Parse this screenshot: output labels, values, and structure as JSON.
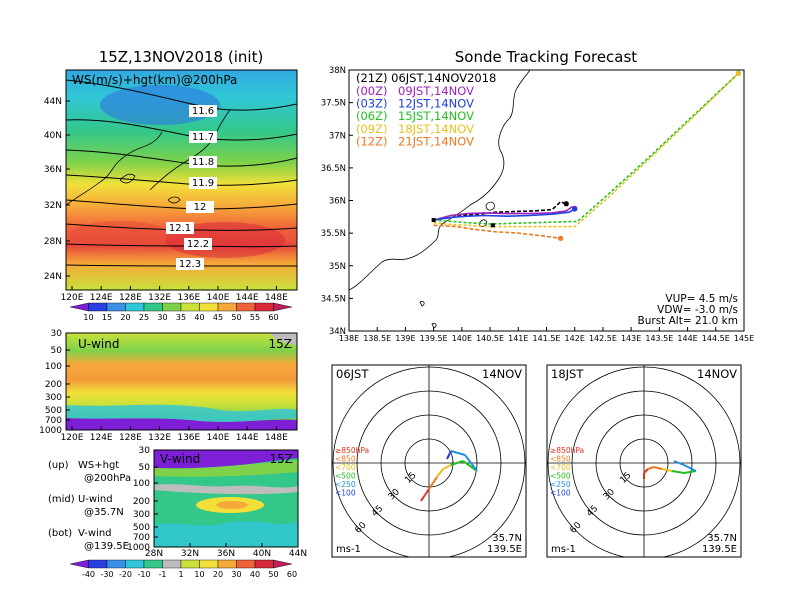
{
  "left_title": "15Z,13NOV2018 (init)",
  "ws_panel": {
    "label": "WS(m/s)+hgt(km)@200hPa",
    "lat_ticks": [
      "44N",
      "40N",
      "36N",
      "32N",
      "28N",
      "24N"
    ],
    "lon_ticks": [
      "120E",
      "124E",
      "128E",
      "132E",
      "136E",
      "140E",
      "144E",
      "148E"
    ],
    "contour_labels": [
      "11.6",
      "11.7",
      "11.8",
      "11.9",
      "12",
      "12.1",
      "12.2",
      "12.3"
    ],
    "colorbar_labels": [
      "10",
      "15",
      "20",
      "25",
      "30",
      "35",
      "40",
      "45",
      "50",
      "55",
      "60"
    ],
    "colorbar_colors": [
      "#7d1fd6",
      "#2b3fe0",
      "#3a8fe8",
      "#31c6d8",
      "#34c78a",
      "#7ed24a",
      "#c9e13a",
      "#f2e03a",
      "#f6a93a",
      "#f0623a",
      "#d8283a",
      "#c01e5c"
    ]
  },
  "u_panel": {
    "label": "U-wind",
    "time": "15Z",
    "p_ticks": [
      "30",
      "50",
      "100",
      "200",
      "300",
      "500",
      "700",
      "1000"
    ],
    "lon_ticks": [
      "120E",
      "124E",
      "128E",
      "132E",
      "136E",
      "140E",
      "144E",
      "148E"
    ]
  },
  "v_panel": {
    "label": "V-wind",
    "time": "15Z",
    "p_ticks": [
      "30",
      "50",
      "100",
      "200",
      "300",
      "500",
      "700",
      "1000"
    ],
    "lat_ticks": [
      "28N",
      "32N",
      "36N",
      "40N",
      "44N"
    ]
  },
  "legend_notes": [
    {
      "key": "(up)",
      "line1": "WS+hgt",
      "line2": "@200hPa"
    },
    {
      "key": "(mid)",
      "line1": "U-wind",
      "line2": "@35.7N"
    },
    {
      "key": "(bot)",
      "line1": "V-wind",
      "line2": "@139.5E"
    }
  ],
  "wind_colorbar": {
    "labels": [
      "-40",
      "-30",
      "-20",
      "-10",
      "-1",
      "1",
      "10",
      "20",
      "30",
      "40",
      "50",
      "60"
    ],
    "colors": [
      "#7d1fd6",
      "#2b3fe0",
      "#3a8fe8",
      "#31c6d8",
      "#34c78a",
      "#bdbdbd",
      "#c9e13a",
      "#f2e03a",
      "#f6a93a",
      "#f0623a",
      "#d8283a",
      "#c01e5c"
    ]
  },
  "tracking": {
    "title": "Sonde Tracking Forecast",
    "lat_ticks": [
      "38N",
      "37.5N",
      "37N",
      "36.5N",
      "36N",
      "35.5N",
      "35N",
      "34.5N",
      "34N"
    ],
    "lon_ticks": [
      "138E",
      "138.5E",
      "139E",
      "139.5E",
      "140E",
      "140.5E",
      "141E",
      "141.5E",
      "142E",
      "142.5E",
      "143E",
      "143.5E",
      "144E",
      "144.5E",
      "145E"
    ],
    "header_line": "(21Z) 06JST,14NOV2018",
    "launches": [
      {
        "utc": "(00Z)",
        "jst": "09JST,14NOV",
        "color": "#a020c0"
      },
      {
        "utc": "(03Z)",
        "jst": "12JST,14NOV",
        "color": "#2040e0"
      },
      {
        "utc": "(06Z)",
        "jst": "15JST,14NOV",
        "color": "#22c020"
      },
      {
        "utc": "(09Z)",
        "jst": "18JST,14NOV",
        "color": "#e8c020"
      },
      {
        "utc": "(12Z)",
        "jst": "21JST,14NOV",
        "color": "#f07820"
      }
    ],
    "params": [
      "VUP= 4.5 m/s",
      "VDW= -3.0 m/s",
      "Burst Alt= 21.0 km"
    ]
  },
  "hodo_left": {
    "time": "06JST",
    "date": "14NOV",
    "ring_labels": [
      "15",
      "30",
      "45",
      "60"
    ],
    "unit": "ms-1",
    "lat": "35.7N",
    "lon": "139.5E",
    "levels": [
      {
        "label": "≥850hPa",
        "color": "#e83020"
      },
      {
        "label": "<850",
        "color": "#f07820"
      },
      {
        "label": "<700",
        "color": "#e8c020"
      },
      {
        "label": "<500",
        "color": "#22c020"
      },
      {
        "label": "<250",
        "color": "#2090e0"
      },
      {
        "label": "<100",
        "color": "#2040e0"
      }
    ]
  },
  "hodo_right": {
    "time": "18JST",
    "date": "14NOV",
    "ring_labels": [
      "15",
      "30",
      "45",
      "60"
    ],
    "unit": "ms-1",
    "lat": "35.7N",
    "lon": "139.5E",
    "levels": [
      {
        "label": "≥850hPa",
        "color": "#e83020"
      },
      {
        "label": "<850",
        "color": "#f07820"
      },
      {
        "label": "<700",
        "color": "#e8c020"
      },
      {
        "label": "<500",
        "color": "#22c020"
      },
      {
        "label": "<250",
        "color": "#2090e0"
      },
      {
        "label": "<100",
        "color": "#2040e0"
      }
    ]
  },
  "chart_data": {
    "type": "line",
    "title": "Sonde Tracking Forecast",
    "xlabel": "",
    "ylabel": "",
    "xlim": [
      138,
      145
    ],
    "ylim": [
      34,
      38
    ],
    "series": [
      {
        "name": "(21Z) 06JST,14NOV2018",
        "color": "#000000",
        "x": [
          139.5,
          139.8,
          140.1,
          140.4,
          140.6,
          140.9,
          141.3,
          141.6,
          141.75,
          141.85
        ],
        "y": [
          35.7,
          35.74,
          35.78,
          35.8,
          35.82,
          35.83,
          35.84,
          35.86,
          35.98,
          35.95
        ]
      },
      {
        "name": "(00Z) 09JST,14NOV",
        "color": "#a020c0",
        "x": [
          139.5,
          139.8,
          140.1,
          140.4,
          140.8,
          141.2,
          141.6,
          141.85,
          141.95,
          142.0
        ],
        "y": [
          35.7,
          35.77,
          35.8,
          35.81,
          35.8,
          35.8,
          35.81,
          35.84,
          35.9,
          35.88
        ]
      },
      {
        "name": "(03Z) 12JST,14NOV",
        "color": "#2040e0",
        "x": [
          139.5,
          139.8,
          140.1,
          140.4,
          140.8,
          141.2,
          141.6,
          141.9,
          142.0
        ],
        "y": [
          35.7,
          35.74,
          35.76,
          35.77,
          35.76,
          35.77,
          35.79,
          35.82,
          35.87
        ]
      },
      {
        "name": "(06Z) 15JST,14NOV",
        "color": "#22c020",
        "x": [
          139.5,
          139.8,
          140.1,
          140.5,
          140.9,
          141.3,
          141.7,
          142.05,
          142.6,
          143.3,
          144.1,
          144.9
        ],
        "y": [
          35.7,
          35.68,
          35.66,
          35.64,
          35.65,
          35.66,
          35.67,
          35.68,
          36.1,
          36.65,
          37.3,
          37.95
        ]
      },
      {
        "name": "(09Z) 18JST,14NOV",
        "color": "#e8c020",
        "x": [
          139.5,
          139.8,
          140.1,
          140.5,
          140.9,
          141.3,
          141.7,
          142.0,
          142.6,
          143.3,
          144.1,
          144.9
        ],
        "y": [
          35.66,
          35.63,
          35.62,
          35.6,
          35.6,
          35.6,
          35.6,
          35.6,
          36.05,
          36.62,
          37.28,
          37.95
        ]
      },
      {
        "name": "(12Z) 21JST,14NOV",
        "color": "#f07820",
        "x": [
          139.5,
          139.9,
          140.2,
          140.6,
          141.0,
          141.4,
          141.75
        ],
        "y": [
          35.62,
          35.6,
          35.56,
          35.52,
          35.5,
          35.46,
          35.42
        ]
      }
    ]
  }
}
